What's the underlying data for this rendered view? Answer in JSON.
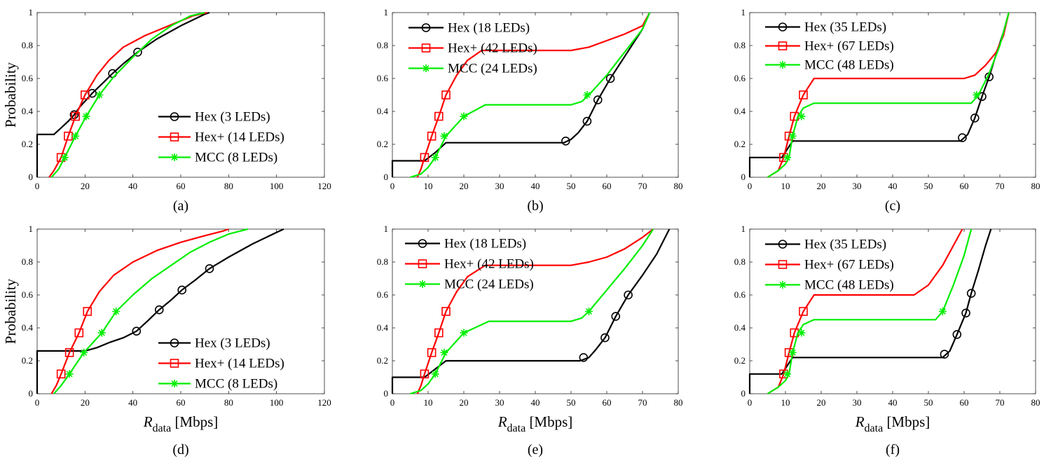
{
  "figure": {
    "ylabel": "Probability",
    "xlabel_main": "R",
    "xlabel_sub": "data",
    "xlabel_unit": "[Mbps]"
  },
  "colors": {
    "Hex": "#000000",
    "Hex+": "#ff0000",
    "MCC": "#00ee00"
  },
  "chart_data": [
    {
      "type": "line",
      "panel_label": "(a)",
      "xlim": [
        0,
        120
      ],
      "ylim": [
        0,
        1
      ],
      "xticks": [
        0,
        20,
        40,
        60,
        80,
        100,
        120
      ],
      "yticks": [
        0,
        0.2,
        0.4,
        0.6,
        0.8,
        1
      ],
      "legend": "bottom-right",
      "series": [
        {
          "name": "Hex (3 LEDs)",
          "key": "Hex",
          "marker": "circle",
          "x": [
            0,
            0,
            7,
            10,
            13,
            15.5,
            18,
            23,
            28,
            31.5,
            36,
            42,
            50,
            60,
            70,
            72
          ],
          "y": [
            0,
            0.26,
            0.26,
            0.3,
            0.34,
            0.38,
            0.43,
            0.51,
            0.58,
            0.63,
            0.69,
            0.76,
            0.84,
            0.92,
            0.99,
            1
          ],
          "markers_x": [
            15.5,
            23,
            31.5,
            42
          ],
          "markers_y": [
            0.38,
            0.51,
            0.63,
            0.76
          ]
        },
        {
          "name": "Hex+ (14 LEDs)",
          "key": "Hex+",
          "marker": "square",
          "x": [
            5,
            7,
            10,
            13,
            16,
            20,
            25,
            30,
            36,
            45,
            55,
            65,
            71
          ],
          "y": [
            0,
            0.04,
            0.12,
            0.25,
            0.37,
            0.5,
            0.62,
            0.71,
            0.79,
            0.86,
            0.92,
            0.98,
            1
          ],
          "markers_x": [
            10,
            13,
            16,
            20
          ],
          "markers_y": [
            0.12,
            0.25,
            0.37,
            0.5
          ]
        },
        {
          "name": "MCC (8 LEDs)",
          "key": "MCC",
          "marker": "asterisk",
          "x": [
            6,
            9,
            11.5,
            16,
            20.5,
            26,
            32,
            40,
            48,
            56,
            64,
            70
          ],
          "y": [
            0,
            0.05,
            0.12,
            0.25,
            0.37,
            0.5,
            0.61,
            0.73,
            0.84,
            0.92,
            0.98,
            1
          ],
          "markers_x": [
            11.5,
            16,
            20.5,
            26
          ],
          "markers_y": [
            0.12,
            0.25,
            0.37,
            0.5
          ]
        }
      ]
    },
    {
      "type": "line",
      "panel_label": "(b)",
      "xlim": [
        0,
        80
      ],
      "ylim": [
        0,
        1
      ],
      "xticks": [
        0,
        10,
        20,
        30,
        40,
        50,
        60,
        70,
        80
      ],
      "yticks": [
        0,
        0.2,
        0.4,
        0.6,
        0.8,
        1
      ],
      "legend": "top-left",
      "series": [
        {
          "name": "Hex (18 LEDs)",
          "key": "Hex",
          "marker": "circle",
          "x": [
            0,
            0,
            9,
            12,
            15,
            48,
            50,
            52,
            54.5,
            57.5,
            61,
            64,
            67,
            70,
            72
          ],
          "y": [
            0,
            0.1,
            0.1,
            0.15,
            0.21,
            0.21,
            0.23,
            0.27,
            0.34,
            0.47,
            0.6,
            0.7,
            0.8,
            0.9,
            1
          ],
          "markers_x": [
            48.5,
            54.5,
            57.5,
            61
          ],
          "markers_y": [
            0.22,
            0.34,
            0.47,
            0.6
          ]
        },
        {
          "name": "Hex+ (42 LEDs)",
          "key": "Hex+",
          "marker": "square",
          "x": [
            7,
            8,
            9,
            11,
            13,
            15,
            18,
            21,
            25,
            50,
            55,
            60,
            65,
            70,
            72
          ],
          "y": [
            0,
            0.05,
            0.12,
            0.25,
            0.37,
            0.5,
            0.62,
            0.71,
            0.77,
            0.77,
            0.79,
            0.83,
            0.87,
            0.92,
            1
          ],
          "markers_x": [
            9,
            11,
            13,
            15
          ],
          "markers_y": [
            0.12,
            0.25,
            0.37,
            0.5
          ]
        },
        {
          "name": "MCC (24 LEDs)",
          "key": "MCC",
          "marker": "asterisk",
          "x": [
            5,
            8,
            10,
            12,
            15,
            20,
            26,
            50,
            53,
            55,
            60,
            65,
            70,
            72
          ],
          "y": [
            0,
            0.02,
            0.06,
            0.12,
            0.25,
            0.37,
            0.44,
            0.44,
            0.46,
            0.5,
            0.62,
            0.76,
            0.9,
            1
          ],
          "markers_x": [
            12,
            14.5,
            20,
            54.5
          ],
          "markers_y": [
            0.12,
            0.25,
            0.37,
            0.5
          ]
        }
      ]
    },
    {
      "type": "line",
      "panel_label": "(c)",
      "xlim": [
        0,
        80
      ],
      "ylim": [
        0,
        1
      ],
      "xticks": [
        0,
        10,
        20,
        30,
        40,
        50,
        60,
        70,
        80
      ],
      "yticks": [
        0,
        0.2,
        0.4,
        0.6,
        0.8,
        1
      ],
      "legend": "top-left",
      "series": [
        {
          "name": "Hex (35 LEDs)",
          "key": "Hex",
          "marker": "circle",
          "x": [
            0,
            0,
            9,
            10.5,
            12,
            59,
            61,
            63,
            65,
            67,
            69,
            71,
            72.5
          ],
          "y": [
            0,
            0.12,
            0.12,
            0.17,
            0.22,
            0.22,
            0.26,
            0.36,
            0.49,
            0.61,
            0.75,
            0.88,
            1
          ],
          "markers_x": [
            59.5,
            63,
            65,
            67
          ],
          "markers_y": [
            0.24,
            0.36,
            0.49,
            0.61
          ]
        },
        {
          "name": "Hex+ (67 LEDs)",
          "key": "Hex+",
          "marker": "square",
          "x": [
            5,
            8,
            9.5,
            11,
            12.5,
            15,
            18,
            60,
            63,
            66,
            69,
            71,
            72.5
          ],
          "y": [
            0,
            0.04,
            0.12,
            0.25,
            0.37,
            0.5,
            0.6,
            0.6,
            0.62,
            0.68,
            0.76,
            0.86,
            1
          ],
          "markers_x": [
            9.5,
            11,
            12.5,
            15
          ],
          "markers_y": [
            0.12,
            0.25,
            0.37,
            0.5
          ]
        },
        {
          "name": "MCC (48 LEDs)",
          "key": "MCC",
          "marker": "asterisk",
          "x": [
            5,
            8,
            10,
            11,
            12,
            13.5,
            15,
            18,
            62,
            64,
            67,
            70,
            72.5
          ],
          "y": [
            0,
            0.04,
            0.08,
            0.12,
            0.25,
            0.37,
            0.42,
            0.45,
            0.45,
            0.5,
            0.63,
            0.8,
            1
          ],
          "markers_x": [
            10.5,
            12,
            14.5,
            63.5
          ],
          "markers_y": [
            0.12,
            0.25,
            0.37,
            0.5
          ]
        }
      ]
    },
    {
      "type": "line",
      "panel_label": "(d)",
      "xlim": [
        0,
        120
      ],
      "ylim": [
        0,
        1
      ],
      "xticks": [
        0,
        20,
        40,
        60,
        80,
        100,
        120
      ],
      "yticks": [
        0,
        0.2,
        0.4,
        0.6,
        0.8,
        1
      ],
      "legend": "bottom-right",
      "series": [
        {
          "name": "Hex (3 LEDs)",
          "key": "Hex",
          "marker": "circle",
          "x": [
            0,
            0,
            20,
            25,
            30,
            36,
            41.5,
            46,
            51,
            56,
            60.5,
            66,
            72,
            80,
            90,
            100,
            103
          ],
          "y": [
            0,
            0.26,
            0.26,
            0.28,
            0.31,
            0.34,
            0.38,
            0.44,
            0.51,
            0.57,
            0.63,
            0.69,
            0.76,
            0.83,
            0.91,
            0.98,
            1
          ],
          "markers_x": [
            41.5,
            51,
            60.5,
            72
          ],
          "markers_y": [
            0.38,
            0.51,
            0.63,
            0.76
          ]
        },
        {
          "name": "Hex+ (14 LEDs)",
          "key": "Hex+",
          "marker": "square",
          "x": [
            6,
            8,
            10,
            13.5,
            17.5,
            21,
            26,
            32,
            40,
            50,
            60,
            70,
            78,
            80
          ],
          "y": [
            0,
            0.05,
            0.12,
            0.25,
            0.37,
            0.5,
            0.62,
            0.72,
            0.8,
            0.87,
            0.92,
            0.96,
            0.99,
            1
          ],
          "markers_x": [
            10,
            13.5,
            17.5,
            21
          ],
          "markers_y": [
            0.12,
            0.25,
            0.37,
            0.5
          ]
        },
        {
          "name": "MCC (8 LEDs)",
          "key": "MCC",
          "marker": "asterisk",
          "x": [
            7,
            10,
            13.5,
            19.5,
            27,
            33,
            40,
            48,
            56,
            64,
            72,
            80,
            88
          ],
          "y": [
            0,
            0.05,
            0.12,
            0.25,
            0.37,
            0.5,
            0.6,
            0.7,
            0.78,
            0.86,
            0.92,
            0.97,
            1
          ],
          "markers_x": [
            13.5,
            19.5,
            27,
            33
          ],
          "markers_y": [
            0.12,
            0.25,
            0.37,
            0.5
          ]
        }
      ]
    },
    {
      "type": "line",
      "panel_label": "(e)",
      "xlim": [
        0,
        80
      ],
      "ylim": [
        0,
        1
      ],
      "xticks": [
        0,
        10,
        20,
        30,
        40,
        50,
        60,
        70,
        80
      ],
      "yticks": [
        0,
        0.2,
        0.4,
        0.6,
        0.8,
        1
      ],
      "legend": "top-left",
      "series": [
        {
          "name": "Hex (18 LEDs)",
          "key": "Hex",
          "marker": "circle",
          "x": [
            0,
            0,
            9,
            12,
            15,
            52.5,
            55,
            57,
            59.5,
            62.5,
            66,
            70,
            74,
            77.5
          ],
          "y": [
            0,
            0.1,
            0.1,
            0.15,
            0.2,
            0.2,
            0.22,
            0.27,
            0.34,
            0.47,
            0.6,
            0.72,
            0.85,
            1
          ],
          "markers_x": [
            53.5,
            59.5,
            62.5,
            66
          ],
          "markers_y": [
            0.22,
            0.34,
            0.47,
            0.6
          ]
        },
        {
          "name": "Hex+ (42 LEDs)",
          "key": "Hex+",
          "marker": "square",
          "x": [
            7,
            8,
            9,
            11,
            13,
            15,
            18,
            21,
            26,
            50,
            55,
            60,
            65,
            70,
            73
          ],
          "y": [
            0,
            0.05,
            0.12,
            0.25,
            0.37,
            0.5,
            0.62,
            0.71,
            0.78,
            0.78,
            0.8,
            0.83,
            0.88,
            0.95,
            1
          ],
          "markers_x": [
            9,
            11,
            13,
            15
          ],
          "markers_y": [
            0.12,
            0.25,
            0.37,
            0.5
          ]
        },
        {
          "name": "MCC (24 LEDs)",
          "key": "MCC",
          "marker": "asterisk",
          "x": [
            5,
            8,
            10,
            12,
            15,
            20,
            27,
            50,
            53,
            55,
            60,
            65,
            70,
            73
          ],
          "y": [
            0,
            0.02,
            0.06,
            0.12,
            0.25,
            0.37,
            0.44,
            0.44,
            0.46,
            0.5,
            0.63,
            0.76,
            0.9,
            1
          ],
          "markers_x": [
            12,
            14.5,
            20,
            55
          ],
          "markers_y": [
            0.12,
            0.25,
            0.37,
            0.5
          ]
        }
      ]
    },
    {
      "type": "line",
      "panel_label": "(f)",
      "xlim": [
        0,
        80
      ],
      "ylim": [
        0,
        1
      ],
      "xticks": [
        0,
        10,
        20,
        30,
        40,
        50,
        60,
        70,
        80
      ],
      "yticks": [
        0,
        0.2,
        0.4,
        0.6,
        0.8,
        1
      ],
      "legend": "top-left",
      "series": [
        {
          "name": "Hex (35 LEDs)",
          "key": "Hex",
          "marker": "circle",
          "x": [
            0,
            0,
            9,
            10.5,
            12,
            54,
            56,
            58,
            60.5,
            62,
            64,
            66,
            67.5
          ],
          "y": [
            0,
            0.12,
            0.12,
            0.17,
            0.22,
            0.22,
            0.26,
            0.36,
            0.49,
            0.61,
            0.75,
            0.9,
            1
          ],
          "markers_x": [
            54.5,
            58,
            60.5,
            62
          ],
          "markers_y": [
            0.24,
            0.36,
            0.49,
            0.61
          ]
        },
        {
          "name": "Hex+ (67 LEDs)",
          "key": "Hex+",
          "marker": "square",
          "x": [
            5,
            8,
            9.5,
            11,
            12.5,
            15,
            18,
            46,
            50,
            54,
            57,
            59.5
          ],
          "y": [
            0,
            0.04,
            0.12,
            0.25,
            0.37,
            0.5,
            0.6,
            0.6,
            0.66,
            0.78,
            0.9,
            1
          ],
          "markers_x": [
            9.5,
            11,
            12.5,
            15
          ],
          "markers_y": [
            0.12,
            0.25,
            0.37,
            0.5
          ]
        },
        {
          "name": "MCC (48 LEDs)",
          "key": "MCC",
          "marker": "asterisk",
          "x": [
            5,
            8,
            10,
            11,
            12,
            13.5,
            15,
            18,
            52,
            54,
            57,
            60,
            62
          ],
          "y": [
            0,
            0.04,
            0.08,
            0.12,
            0.25,
            0.37,
            0.42,
            0.45,
            0.45,
            0.5,
            0.66,
            0.84,
            1
          ],
          "markers_x": [
            10.5,
            12,
            14.5,
            54
          ],
          "markers_y": [
            0.12,
            0.25,
            0.37,
            0.5
          ]
        }
      ]
    }
  ]
}
